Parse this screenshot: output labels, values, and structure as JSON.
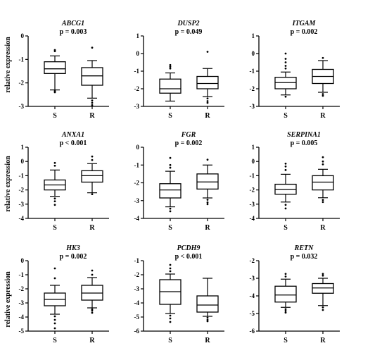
{
  "ylabel": "relative expression",
  "chart_data": [
    {
      "type": "boxplot",
      "title": "ABCG1",
      "annotation": "p = 0.003",
      "ylim": [
        -3,
        0
      ],
      "yticks": [
        "0",
        "-1",
        "-2",
        "-3"
      ],
      "categories": [
        "S",
        "R"
      ],
      "boxes": [
        {
          "whisker_low": -2.3,
          "q1": -1.6,
          "median": -1.4,
          "q3": -1.1,
          "whisker_high": -0.85,
          "outliers": [
            -0.65,
            -0.6,
            -2.35,
            -2.4
          ]
        },
        {
          "whisker_low": -2.65,
          "q1": -2.1,
          "median": -1.7,
          "q3": -1.35,
          "whisker_high": -1.05,
          "outliers": [
            -0.5,
            -2.75,
            -2.85,
            -2.95
          ]
        }
      ]
    },
    {
      "type": "boxplot",
      "title": "DUSP2",
      "annotation": "p = 0.049",
      "ylim": [
        -3,
        1
      ],
      "yticks": [
        "1",
        "0",
        "-1",
        "-2",
        "-3"
      ],
      "categories": [
        "S",
        "R"
      ],
      "boxes": [
        {
          "whisker_low": -2.7,
          "q1": -2.25,
          "median": -2.0,
          "q3": -1.45,
          "whisker_high": -1.1,
          "outliers": [
            -0.65,
            -0.75,
            -0.85
          ]
        },
        {
          "whisker_low": -2.45,
          "q1": -2.0,
          "median": -1.7,
          "q3": -1.3,
          "whisker_high": -0.85,
          "outliers": [
            0.1,
            -2.55,
            -2.7,
            -2.8
          ]
        }
      ]
    },
    {
      "type": "boxplot",
      "title": "ITGAM",
      "annotation": "p = 0.002",
      "ylim": [
        -3,
        1
      ],
      "yticks": [
        "1",
        "0",
        "-1",
        "-2",
        "-3"
      ],
      "categories": [
        "S",
        "R"
      ],
      "boxes": [
        {
          "whisker_low": -2.35,
          "q1": -2.0,
          "median": -1.65,
          "q3": -1.35,
          "whisker_high": -1.05,
          "outliers": [
            0.0,
            -0.3,
            -0.5,
            -0.7,
            -0.85,
            -2.45
          ]
        },
        {
          "whisker_low": -2.2,
          "q1": -1.7,
          "median": -1.3,
          "q3": -0.9,
          "whisker_high": -0.4,
          "outliers": [
            -0.25,
            -2.3,
            -2.4
          ]
        }
      ]
    },
    {
      "type": "boxplot",
      "title": "ANXA1",
      "annotation": "p < 0.001",
      "ylim": [
        -4,
        1
      ],
      "yticks": [
        "1",
        "0",
        "-1",
        "-2",
        "-3",
        "-4"
      ],
      "categories": [
        "S",
        "R"
      ],
      "boxes": [
        {
          "whisker_low": -2.45,
          "q1": -2.0,
          "median": -1.65,
          "q3": -1.3,
          "whisker_high": -0.6,
          "outliers": [
            -0.1,
            -0.3,
            -2.6,
            -2.8,
            -3.05
          ]
        },
        {
          "whisker_low": -2.2,
          "q1": -1.45,
          "median": -1.0,
          "q3": -0.65,
          "whisker_high": -0.15,
          "outliers": [
            0.35,
            0.1,
            -2.3
          ]
        }
      ]
    },
    {
      "type": "boxplot",
      "title": "FGR",
      "annotation": "p = 0.002",
      "ylim": [
        -4,
        0
      ],
      "yticks": [
        "0",
        "-1",
        "-2",
        "-3",
        "-4"
      ],
      "categories": [
        "S",
        "R"
      ],
      "boxes": [
        {
          "whisker_low": -3.35,
          "q1": -2.85,
          "median": -2.4,
          "q3": -2.05,
          "whisker_high": -1.35,
          "outliers": [
            -0.6,
            -1.0,
            -1.15,
            -3.45,
            -3.6
          ]
        },
        {
          "whisker_low": -2.85,
          "q1": -2.35,
          "median": -1.95,
          "q3": -1.5,
          "whisker_high": -1.0,
          "outliers": [
            -0.7,
            -2.95,
            -3.1,
            -3.2
          ]
        }
      ]
    },
    {
      "type": "boxplot",
      "title": "SERPINA1",
      "annotation": "p = 0.005",
      "ylim": [
        -4,
        1
      ],
      "yticks": [
        "1",
        "0",
        "-1",
        "-2",
        "-3",
        "-4"
      ],
      "categories": [
        "S",
        "R"
      ],
      "boxes": [
        {
          "whisker_low": -2.85,
          "q1": -2.3,
          "median": -1.95,
          "q3": -1.6,
          "whisker_high": -0.9,
          "outliers": [
            -0.15,
            -0.35,
            -0.6,
            -3.05,
            -3.3
          ]
        },
        {
          "whisker_low": -2.55,
          "q1": -2.0,
          "median": -1.45,
          "q3": -1.0,
          "whisker_high": -0.55,
          "outliers": [
            0.3,
            0.0,
            -0.2,
            -2.7,
            -2.85
          ]
        }
      ]
    },
    {
      "type": "boxplot",
      "title": "HK3",
      "annotation": "p = 0.002",
      "ylim": [
        -5,
        0
      ],
      "yticks": [
        "0",
        "-1",
        "-2",
        "-3",
        "-4",
        "-5"
      ],
      "categories": [
        "S",
        "R"
      ],
      "boxes": [
        {
          "whisker_low": -3.8,
          "q1": -3.2,
          "median": -2.75,
          "q3": -2.3,
          "whisker_high": -1.75,
          "outliers": [
            -0.55,
            -1.25,
            -3.95,
            -4.2,
            -4.45,
            -4.8
          ]
        },
        {
          "whisker_low": -3.35,
          "q1": -2.8,
          "median": -2.3,
          "q3": -1.75,
          "whisker_high": -1.2,
          "outliers": [
            -0.7,
            -1.0,
            -3.45,
            -3.55,
            -3.7
          ]
        }
      ]
    },
    {
      "type": "boxplot",
      "title": "PCDH9",
      "annotation": "p < 0.001",
      "ylim": [
        -6,
        -1
      ],
      "yticks": [
        "-1",
        "-2",
        "-3",
        "-4",
        "-5",
        "-6"
      ],
      "categories": [
        "S",
        "R"
      ],
      "boxes": [
        {
          "whisker_low": -4.75,
          "q1": -4.1,
          "median": -3.2,
          "q3": -2.35,
          "whisker_high": -1.95,
          "outliers": [
            -1.3,
            -1.55,
            -1.75,
            -4.9,
            -5.1,
            -5.35
          ]
        },
        {
          "whisker_low": -4.95,
          "q1": -4.65,
          "median": -4.15,
          "q3": -3.5,
          "whisker_high": -2.25,
          "outliers": [
            -5.05,
            -5.2,
            -5.3
          ]
        }
      ]
    },
    {
      "type": "boxplot",
      "title": "RETN",
      "annotation": "p = 0.032",
      "ylim": [
        -6,
        -2
      ],
      "yticks": [
        "-2",
        "-3",
        "-4",
        "-5",
        "-6"
      ],
      "categories": [
        "S",
        "R"
      ],
      "boxes": [
        {
          "whisker_low": -4.65,
          "q1": -4.35,
          "median": -3.95,
          "q3": -3.45,
          "whisker_high": -3.05,
          "outliers": [
            -2.75,
            -2.9,
            -4.75,
            -4.85,
            -4.95
          ]
        },
        {
          "whisker_low": -4.55,
          "q1": -3.85,
          "median": -3.55,
          "q3": -3.3,
          "whisker_high": -3.0,
          "outliers": [
            -2.75,
            -2.85,
            -4.65,
            -4.8
          ]
        }
      ]
    }
  ]
}
